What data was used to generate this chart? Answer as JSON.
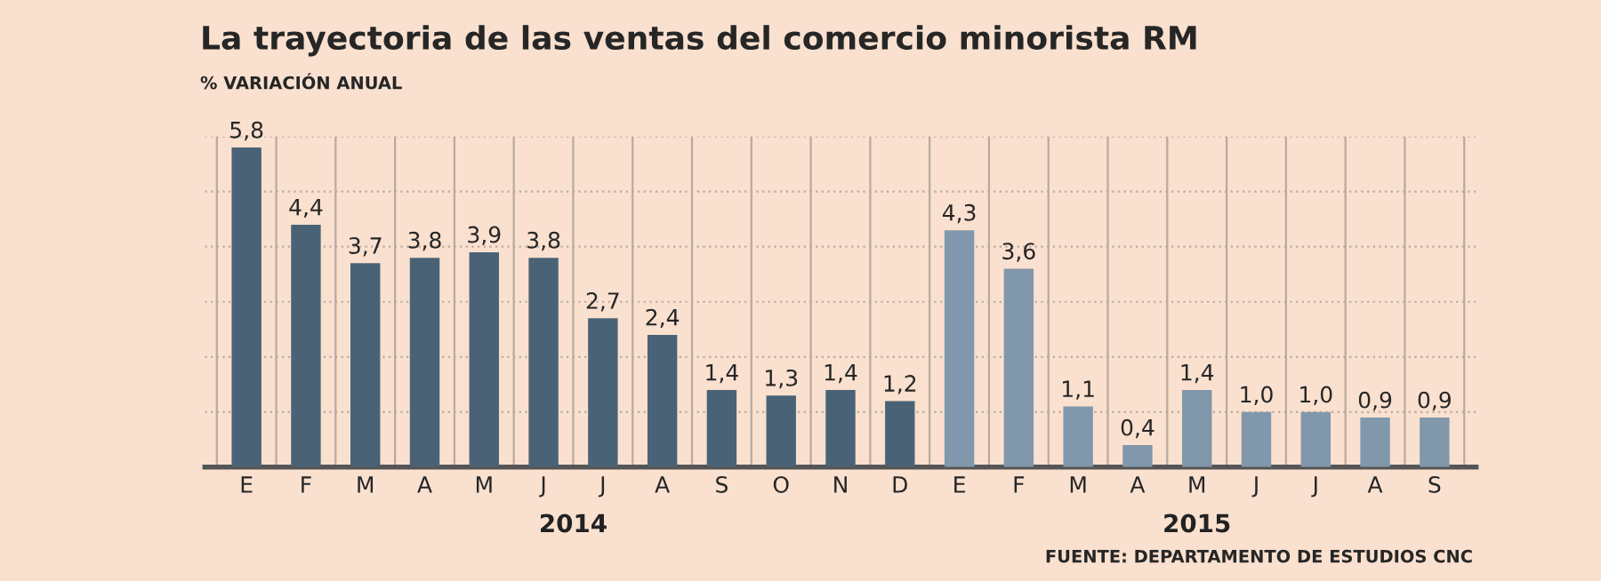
{
  "chart_data": {
    "type": "bar",
    "title": "La trayectoria de las ventas del comercio minorista RM",
    "subtitle": "% VARIACIÓN ANUAL",
    "categories": [
      "E",
      "F",
      "M",
      "A",
      "M",
      "J",
      "J",
      "A",
      "S",
      "O",
      "N",
      "D",
      "E",
      "F",
      "M",
      "A",
      "M",
      "J",
      "J",
      "A",
      "S"
    ],
    "series": [
      {
        "name": "2014",
        "color": "#4a6275",
        "values": [
          5.8,
          4.4,
          3.7,
          3.8,
          3.9,
          3.8,
          2.7,
          2.4,
          1.4,
          1.3,
          1.4,
          1.2,
          null,
          null,
          null,
          null,
          null,
          null,
          null,
          null,
          null
        ],
        "value_labels": [
          "5,8",
          "4,4",
          "3,7",
          "3,8",
          "3,9",
          "3,8",
          "2,7",
          "2,4",
          "1,4",
          "1,3",
          "1,4",
          "1,2",
          null,
          null,
          null,
          null,
          null,
          null,
          null,
          null,
          null
        ]
      },
      {
        "name": "2015",
        "color": "#8197ab",
        "values": [
          null,
          null,
          null,
          null,
          null,
          null,
          null,
          null,
          null,
          null,
          null,
          null,
          4.3,
          3.6,
          1.1,
          0.4,
          1.4,
          1.0,
          1.0,
          0.9,
          0.9
        ],
        "value_labels": [
          null,
          null,
          null,
          null,
          null,
          null,
          null,
          null,
          null,
          null,
          null,
          null,
          "4,3",
          "3,6",
          "1,1",
          "0,4",
          "1,4",
          "1,0",
          "1,0",
          "0,9",
          "0,9"
        ]
      }
    ],
    "ylim": [
      0,
      6
    ],
    "yticks": [
      {
        "value": 0,
        "label": null
      },
      {
        "value": 1,
        "label": null
      },
      {
        "value": 2,
        "label": null
      },
      {
        "value": 3,
        "label": null
      },
      {
        "value": 4,
        "label": null
      },
      {
        "value": 5,
        "label": null
      },
      {
        "value": 6,
        "label": null
      }
    ],
    "tick_labels": "x",
    "grid": true,
    "legend": false,
    "annotations": [
      "FUENTE: DEPARTAMENTO DE ESTUDIOS CNC"
    ]
  }
}
